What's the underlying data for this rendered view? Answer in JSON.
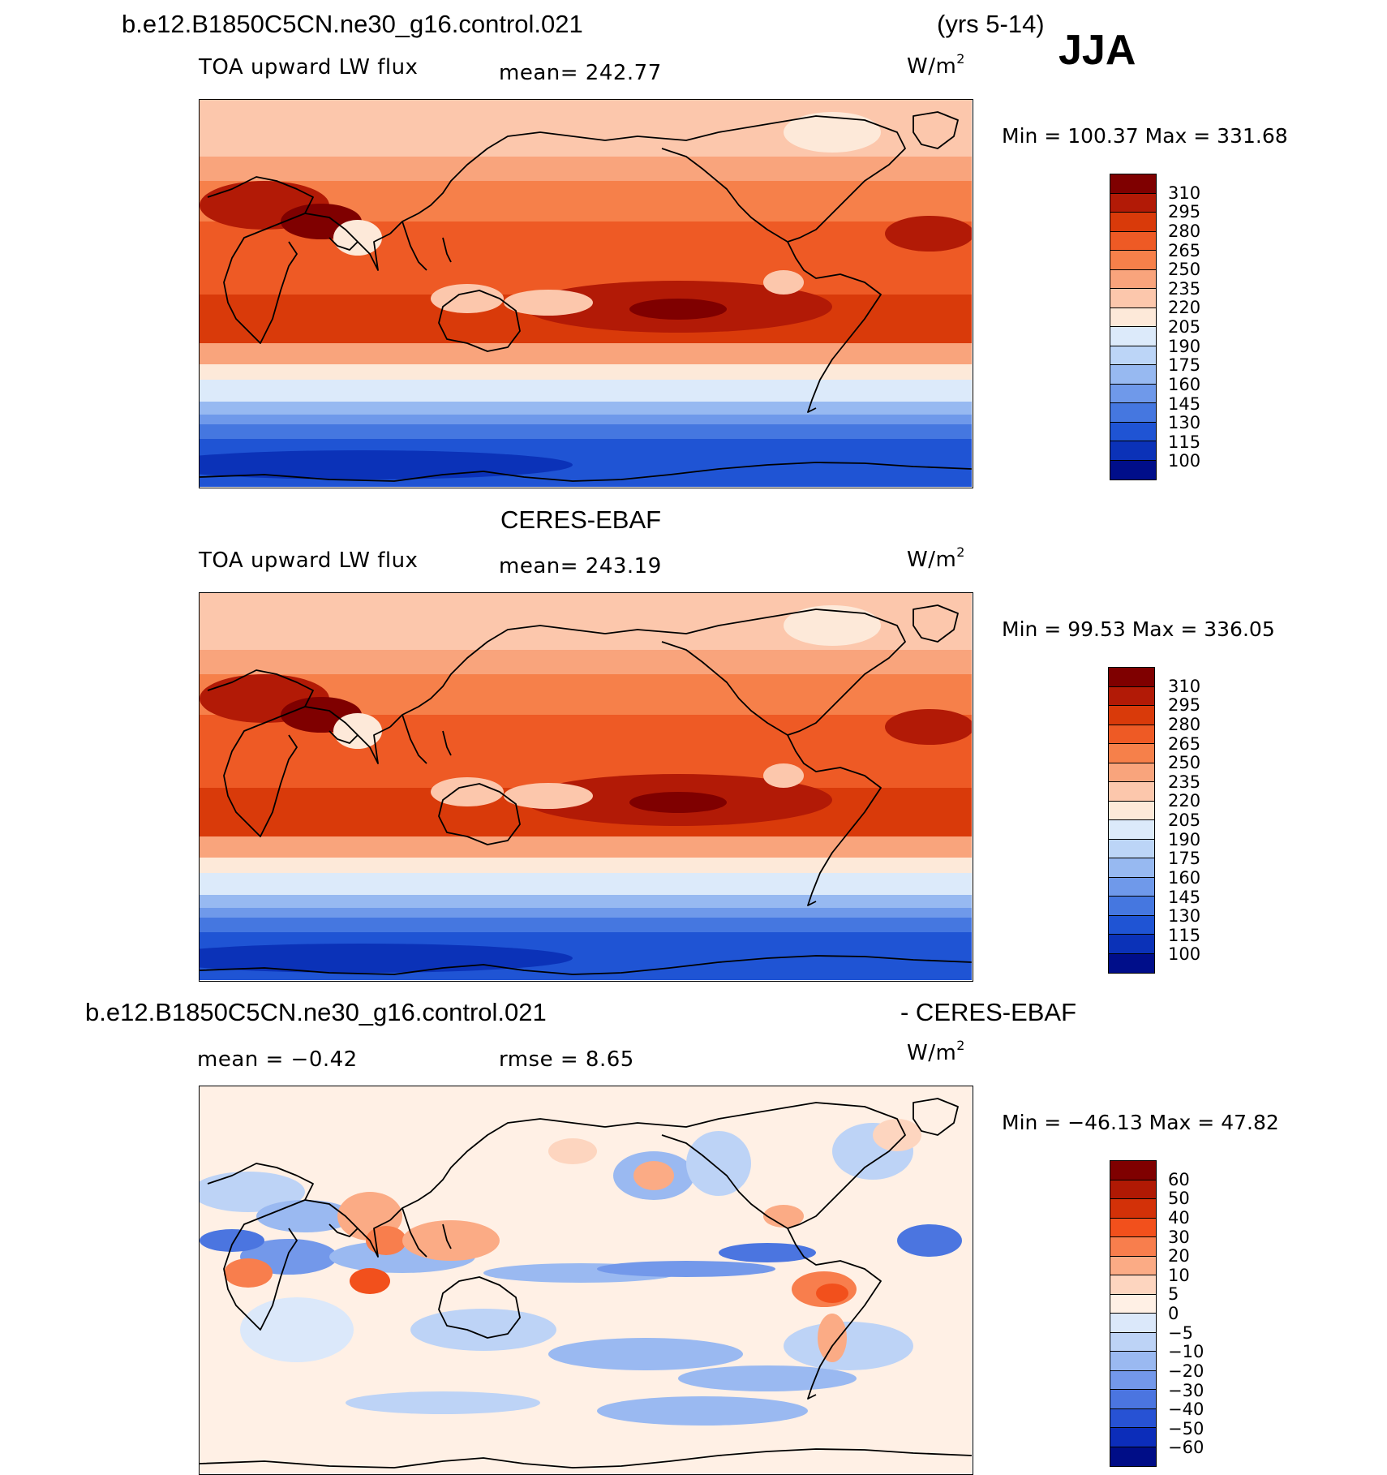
{
  "header": {
    "case": "b.e12.B1850C5CN.ne30_g16.control.021",
    "years": "(yrs 5-14)",
    "season": "JJA"
  },
  "panels": [
    {
      "id": "model",
      "title": "",
      "left_label": "TOA upward LW flux",
      "mean_text": "mean= 242.77",
      "unit": "W/m",
      "unit_sup": "2",
      "minmax": "Min = 100.37 Max = 331.68",
      "colorbar_labels": [
        "310",
        "295",
        "280",
        "265",
        "250",
        "235",
        "220",
        "205",
        "190",
        "175",
        "160",
        "145",
        "130",
        "115",
        "100"
      ]
    },
    {
      "id": "obs",
      "title": "CERES-EBAF",
      "left_label": "TOA upward LW flux",
      "mean_text": "mean= 243.19",
      "unit": "W/m",
      "unit_sup": "2",
      "minmax": "Min =  99.53 Max = 336.05",
      "colorbar_labels": [
        "310",
        "295",
        "280",
        "265",
        "250",
        "235",
        "220",
        "205",
        "190",
        "175",
        "160",
        "145",
        "130",
        "115",
        "100"
      ]
    },
    {
      "id": "diff",
      "title_left": "b.e12.B1850C5CN.ne30_g16.control.021",
      "title_right": "- CERES-EBAF",
      "mean_text": "mean =   −0.42",
      "rmse_text": "rmse =    8.65",
      "unit": "W/m",
      "unit_sup": "2",
      "minmax": "Min = −46.13 Max =  47.82",
      "colorbar_labels": [
        "60",
        "50",
        "40",
        "30",
        "20",
        "10",
        "5",
        "0",
        "−5",
        "−10",
        "−20",
        "−30",
        "−40",
        "−50",
        "−60"
      ]
    }
  ],
  "colors": {
    "flux_scale": [
      "#7f0000",
      "#b21a06",
      "#d93a0a",
      "#ee5a25",
      "#f6804a",
      "#f9a47c",
      "#fcc7ac",
      "#fde9d9",
      "#dceafa",
      "#bcd5f7",
      "#97b9f1",
      "#6f99ea",
      "#4577e0",
      "#1f54d4",
      "#0b32b8",
      "#000e8a"
    ],
    "diff_scale": [
      "#7f0000",
      "#b01904",
      "#d33108",
      "#f2501c",
      "#f87e4d",
      "#fbab85",
      "#fdd5bf",
      "#fff0e5",
      "#dbe8fa",
      "#bdd3f6",
      "#9ab9f1",
      "#7398ea",
      "#4b75e0",
      "#2752d4",
      "#0c2dba",
      "#000d87"
    ]
  }
}
